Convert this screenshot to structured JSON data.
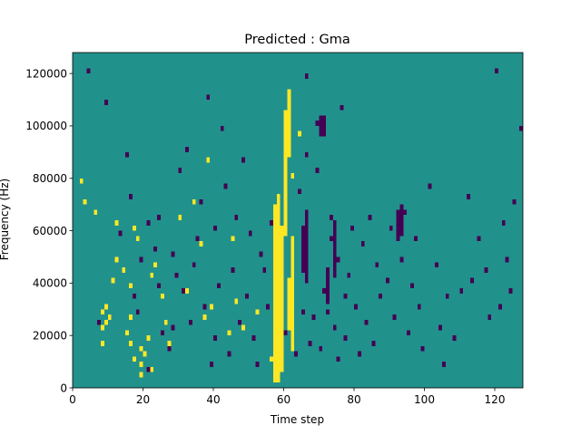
{
  "chart_data": {
    "type": "heatmap",
    "title": "Predicted : Gma",
    "xlabel": "Time step",
    "ylabel": "Frequency (Hz)",
    "xlim": [
      0,
      128
    ],
    "ylim": [
      0,
      128000
    ],
    "x_ticks": [
      0,
      20,
      40,
      60,
      80,
      100,
      120
    ],
    "y_ticks": [
      0,
      20000,
      40000,
      60000,
      80000,
      100000,
      120000
    ],
    "x_tick_labels": [
      "0",
      "20",
      "40",
      "60",
      "80",
      "100",
      "120"
    ],
    "y_tick_labels": [
      "0",
      "20000",
      "40000",
      "60000",
      "80000",
      "100000",
      "120000"
    ],
    "grid": false,
    "legend": "none",
    "colormap": "viridis",
    "colors": {
      "background": "#21918c",
      "high": "#fde725",
      "low": "#440154"
    },
    "bin_width_hz": 2000,
    "high_cells": [
      [
        2,
        78
      ],
      [
        3,
        70
      ],
      [
        6,
        66
      ],
      [
        8,
        16
      ],
      [
        8,
        22
      ],
      [
        8,
        28
      ],
      [
        9,
        24
      ],
      [
        9,
        30
      ],
      [
        10,
        26
      ],
      [
        11,
        40
      ],
      [
        12,
        48
      ],
      [
        12,
        62
      ],
      [
        14,
        44
      ],
      [
        15,
        20
      ],
      [
        16,
        16
      ],
      [
        16,
        26
      ],
      [
        16,
        38
      ],
      [
        17,
        10
      ],
      [
        17,
        60
      ],
      [
        18,
        56
      ],
      [
        19,
        4
      ],
      [
        19,
        8
      ],
      [
        19,
        14
      ],
      [
        20,
        12
      ],
      [
        21,
        18
      ],
      [
        22,
        6
      ],
      [
        22,
        42
      ],
      [
        23,
        46
      ],
      [
        25,
        34
      ],
      [
        26,
        24
      ],
      [
        27,
        16
      ],
      [
        30,
        64
      ],
      [
        32,
        36
      ],
      [
        34,
        70
      ],
      [
        36,
        54
      ],
      [
        37,
        26
      ],
      [
        38,
        86
      ],
      [
        39,
        30
      ],
      [
        44,
        20
      ],
      [
        45,
        56
      ],
      [
        46,
        32
      ],
      [
        48,
        22
      ],
      [
        52,
        28
      ],
      [
        56,
        10
      ],
      [
        58,
        70
      ],
      [
        60,
        100
      ],
      [
        62,
        80
      ],
      [
        64,
        96
      ]
    ],
    "high_bands": [
      [
        57,
        2,
        68
      ],
      [
        58,
        2,
        72
      ],
      [
        59,
        6,
        60
      ],
      [
        61,
        22,
        40
      ],
      [
        62,
        14,
        56
      ],
      [
        60,
        58,
        104
      ],
      [
        61,
        88,
        112
      ]
    ],
    "low_cells": [
      [
        4,
        120
      ],
      [
        7,
        24
      ],
      [
        9,
        108
      ],
      [
        13,
        58
      ],
      [
        15,
        88
      ],
      [
        16,
        72
      ],
      [
        17,
        34
      ],
      [
        18,
        28
      ],
      [
        19,
        48
      ],
      [
        21,
        6
      ],
      [
        21,
        62
      ],
      [
        23,
        52
      ],
      [
        24,
        38
      ],
      [
        24,
        64
      ],
      [
        25,
        20
      ],
      [
        27,
        14
      ],
      [
        28,
        22
      ],
      [
        28,
        50
      ],
      [
        29,
        42
      ],
      [
        30,
        82
      ],
      [
        31,
        36
      ],
      [
        32,
        90
      ],
      [
        33,
        24
      ],
      [
        34,
        46
      ],
      [
        35,
        56
      ],
      [
        36,
        70
      ],
      [
        37,
        30
      ],
      [
        38,
        110
      ],
      [
        39,
        8
      ],
      [
        40,
        18
      ],
      [
        40,
        60
      ],
      [
        41,
        38
      ],
      [
        42,
        98
      ],
      [
        43,
        76
      ],
      [
        44,
        12
      ],
      [
        45,
        44
      ],
      [
        46,
        64
      ],
      [
        47,
        24
      ],
      [
        48,
        86
      ],
      [
        49,
        34
      ],
      [
        50,
        58
      ],
      [
        51,
        18
      ],
      [
        52,
        8
      ],
      [
        53,
        50
      ],
      [
        54,
        44
      ],
      [
        55,
        30
      ],
      [
        56,
        62
      ],
      [
        57,
        24
      ],
      [
        60,
        20
      ],
      [
        63,
        12
      ],
      [
        64,
        74
      ],
      [
        65,
        28
      ],
      [
        66,
        118
      ],
      [
        66,
        88
      ],
      [
        67,
        16
      ],
      [
        68,
        26
      ],
      [
        69,
        100
      ],
      [
        69,
        82
      ],
      [
        70,
        14
      ],
      [
        71,
        36
      ],
      [
        72,
        28
      ],
      [
        73,
        56
      ],
      [
        73,
        64
      ],
      [
        74,
        22
      ],
      [
        75,
        10
      ],
      [
        75,
        48
      ],
      [
        76,
        106
      ],
      [
        77,
        18
      ],
      [
        77,
        34
      ],
      [
        78,
        42
      ],
      [
        79,
        60
      ],
      [
        80,
        30
      ],
      [
        81,
        12
      ],
      [
        82,
        54
      ],
      [
        83,
        24
      ],
      [
        84,
        64
      ],
      [
        85,
        16
      ],
      [
        86,
        46
      ],
      [
        87,
        34
      ],
      [
        89,
        40
      ],
      [
        90,
        60
      ],
      [
        91,
        26
      ],
      [
        93,
        48
      ],
      [
        94,
        66
      ],
      [
        95,
        20
      ],
      [
        96,
        38
      ],
      [
        97,
        56
      ],
      [
        98,
        30
      ],
      [
        99,
        14
      ],
      [
        101,
        76
      ],
      [
        103,
        46
      ],
      [
        104,
        22
      ],
      [
        105,
        8
      ],
      [
        106,
        34
      ],
      [
        108,
        18
      ],
      [
        110,
        36
      ],
      [
        112,
        72
      ],
      [
        113,
        40
      ],
      [
        115,
        56
      ],
      [
        117,
        44
      ],
      [
        118,
        26
      ],
      [
        120,
        120
      ],
      [
        121,
        30
      ],
      [
        122,
        62
      ],
      [
        123,
        48
      ],
      [
        124,
        36
      ],
      [
        125,
        70
      ],
      [
        127,
        98
      ]
    ],
    "low_bands": [
      [
        65,
        44,
        60
      ],
      [
        66,
        40,
        66
      ],
      [
        70,
        96,
        102
      ],
      [
        71,
        96,
        102
      ],
      [
        72,
        32,
        44
      ],
      [
        74,
        42,
        62
      ],
      [
        92,
        56,
        66
      ],
      [
        93,
        58,
        68
      ]
    ]
  }
}
